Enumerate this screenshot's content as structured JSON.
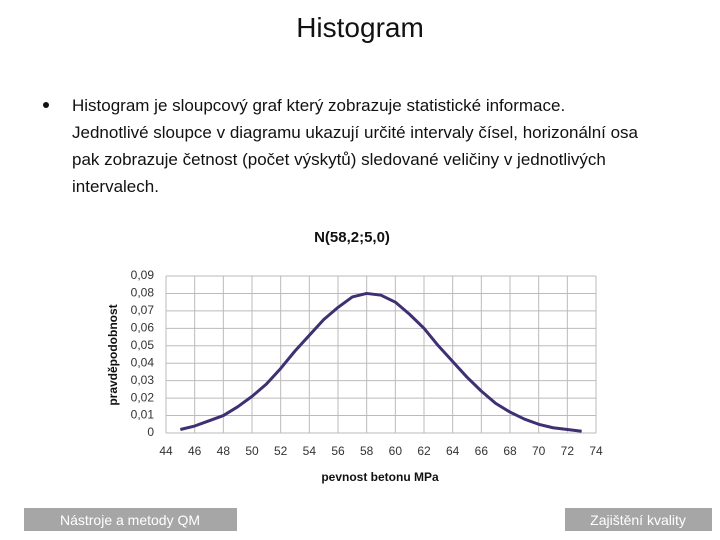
{
  "slide": {
    "title": "Histogram",
    "bullet_lines": [
      "Histogram je sloupcový graf který zobrazuje statistické informace.",
      "Jednotlivé sloupce v diagramu ukazují určité intervaly čísel, horizonální osa",
      "pak zobrazuje četnost (počet výskytů) sledované veličiny v jednotlivých",
      "intervalech."
    ],
    "footer_left": "Nástroje a metody QM",
    "footer_right": "Zajištění kvality"
  },
  "chart_data": {
    "type": "line",
    "title": "N(58,2;5,0)",
    "x_label": "pevnost betonu MPa",
    "y_label": "pravděpodobnost",
    "x": [
      45,
      46,
      47,
      48,
      49,
      50,
      51,
      52,
      53,
      54,
      55,
      56,
      57,
      58,
      59,
      60,
      61,
      62,
      63,
      64,
      65,
      66,
      67,
      68,
      69,
      70,
      71,
      72,
      73
    ],
    "series": [
      {
        "color": "#3f2f73",
        "values": [
          0.002,
          0.004,
          0.007,
          0.01,
          0.015,
          0.021,
          0.028,
          0.037,
          0.047,
          0.056,
          0.065,
          0.072,
          0.078,
          0.08,
          0.079,
          0.075,
          0.068,
          0.06,
          0.05,
          0.041,
          0.032,
          0.024,
          0.017,
          0.012,
          0.008,
          0.005,
          0.003,
          0.002,
          0.001
        ]
      }
    ],
    "xlim": [
      44,
      74
    ],
    "xticks": [
      44,
      46,
      48,
      50,
      52,
      54,
      56,
      58,
      60,
      62,
      64,
      66,
      68,
      70,
      72,
      74
    ],
    "ylim": [
      0,
      0.09
    ],
    "yticks": [
      0,
      {
        "value": 0.01,
        "label": "0,01"
      },
      {
        "value": 0.02,
        "label": "0,02"
      },
      {
        "value": 0.03,
        "label": "0,03"
      },
      {
        "value": 0.04,
        "label": "0,04"
      },
      {
        "value": 0.05,
        "label": "0,05"
      },
      {
        "value": 0.06,
        "label": "0,06"
      },
      {
        "value": 0.07,
        "label": "0,07"
      },
      {
        "value": 0.08,
        "label": "0,08"
      },
      {
        "value": 0.09,
        "label": "0,09"
      }
    ],
    "grid": true
  }
}
